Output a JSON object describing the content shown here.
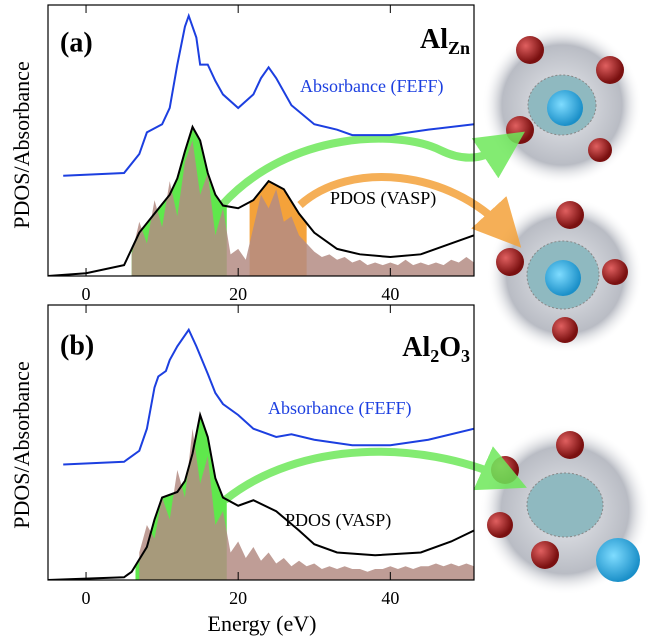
{
  "chart_data": [
    {
      "type": "line",
      "panel_label": "(a)",
      "formula": [
        {
          "text": "Al",
          "sub": false
        },
        {
          "text": "Zn",
          "sub": true
        }
      ],
      "y_label": "PDOS/Absorbance",
      "xlim": [
        -5,
        51
      ],
      "xticks": [
        0,
        20,
        40
      ],
      "ylim": [
        0,
        1
      ],
      "series": [
        {
          "name": "Absorbance (FEFF)",
          "color": "#1c3fe0",
          "x": [
            -3,
            5,
            7,
            8,
            10,
            11,
            12,
            13,
            13.5,
            14.5,
            15,
            16,
            17,
            18,
            20,
            22,
            23,
            24,
            25,
            27,
            30,
            33,
            35,
            40,
            45,
            51
          ],
          "values": [
            0.37,
            0.38,
            0.45,
            0.53,
            0.56,
            0.62,
            0.78,
            0.92,
            0.96,
            0.88,
            0.78,
            0.78,
            0.72,
            0.67,
            0.62,
            0.67,
            0.73,
            0.77,
            0.73,
            0.63,
            0.56,
            0.54,
            0.52,
            0.52,
            0.54,
            0.56
          ]
        },
        {
          "name": "PDOS (VASP)",
          "color": "#000000",
          "x": [
            -5,
            0,
            5,
            6,
            7,
            9,
            11,
            12,
            13,
            14,
            15,
            16,
            17,
            18,
            20,
            22,
            24,
            26,
            28,
            30,
            33,
            36,
            40,
            44,
            48,
            51
          ],
          "values": [
            0.0,
            0.01,
            0.04,
            0.1,
            0.16,
            0.23,
            0.3,
            0.36,
            0.46,
            0.55,
            0.5,
            0.38,
            0.3,
            0.26,
            0.25,
            0.28,
            0.35,
            0.32,
            0.23,
            0.16,
            0.1,
            0.08,
            0.07,
            0.08,
            0.12,
            0.15
          ]
        }
      ],
      "spikes": {
        "color": "#b48c84",
        "x": [
          6,
          7,
          8,
          9,
          10,
          11,
          12,
          13,
          14,
          15,
          16,
          17,
          18,
          19,
          20,
          21,
          22,
          23,
          24,
          25,
          26,
          27,
          28,
          29,
          30,
          31,
          32,
          33,
          34,
          35,
          36,
          37,
          38,
          39,
          40,
          41,
          42,
          43,
          44,
          45,
          46,
          47,
          48,
          49,
          50,
          51
        ],
        "values": [
          0.08,
          0.2,
          0.12,
          0.28,
          0.18,
          0.35,
          0.22,
          0.42,
          0.5,
          0.3,
          0.38,
          0.15,
          0.25,
          0.08,
          0.1,
          0.06,
          0.18,
          0.3,
          0.25,
          0.32,
          0.2,
          0.22,
          0.15,
          0.12,
          0.09,
          0.07,
          0.08,
          0.06,
          0.07,
          0.05,
          0.06,
          0.04,
          0.05,
          0.04,
          0.05,
          0.04,
          0.06,
          0.04,
          0.05,
          0.04,
          0.05,
          0.04,
          0.06,
          0.05,
          0.07,
          0.05
        ]
      },
      "highlights": [
        {
          "from": 6,
          "to": 18.5,
          "color": "#5fe84c"
        },
        {
          "from": 21.5,
          "to": 29,
          "color": "#f4a23a"
        }
      ]
    },
    {
      "type": "line",
      "panel_label": "(b)",
      "formula": [
        {
          "text": "Al",
          "sub": false
        },
        {
          "text": "2",
          "sub": true
        },
        {
          "text": "O",
          "sub": false
        },
        {
          "text": "3",
          "sub": true
        }
      ],
      "y_label": "PDOS/Absorbance",
      "x_label": "Energy (eV)",
      "xlim": [
        -5,
        51
      ],
      "xticks": [
        0,
        20,
        40
      ],
      "ylim": [
        0,
        1
      ],
      "series": [
        {
          "name": "Absorbance (FEFF)",
          "color": "#1c3fe0",
          "x": [
            -3,
            5,
            7,
            8,
            9,
            9.5,
            10.5,
            11,
            12,
            13.5,
            14.5,
            16,
            17,
            18,
            20,
            22,
            25,
            27,
            30,
            35,
            40,
            45,
            51
          ],
          "values": [
            0.42,
            0.43,
            0.47,
            0.55,
            0.7,
            0.74,
            0.76,
            0.8,
            0.85,
            0.91,
            0.85,
            0.75,
            0.68,
            0.64,
            0.6,
            0.55,
            0.52,
            0.53,
            0.51,
            0.49,
            0.49,
            0.51,
            0.55
          ]
        },
        {
          "name": "PDOS (VASP)",
          "color": "#000000",
          "x": [
            -5,
            5,
            6,
            8,
            9,
            10,
            12,
            13,
            14,
            15,
            16,
            17,
            18,
            20,
            22,
            25,
            28,
            30,
            33,
            38,
            44,
            48,
            51
          ],
          "values": [
            0.0,
            0.01,
            0.03,
            0.12,
            0.22,
            0.3,
            0.32,
            0.36,
            0.46,
            0.6,
            0.52,
            0.37,
            0.3,
            0.27,
            0.29,
            0.25,
            0.18,
            0.13,
            0.1,
            0.09,
            0.1,
            0.14,
            0.18
          ]
        }
      ],
      "spikes": {
        "color": "#b48c84",
        "x": [
          7,
          8,
          9,
          10,
          11,
          12,
          13,
          14,
          15,
          16,
          17,
          18,
          19,
          20,
          21,
          22,
          23,
          24,
          25,
          26,
          27,
          28,
          29,
          30,
          31,
          32,
          33,
          34,
          35,
          36,
          37,
          38,
          39,
          40,
          41,
          42,
          43,
          44,
          45,
          46,
          47,
          48,
          49,
          50,
          51
        ],
        "values": [
          0.1,
          0.2,
          0.15,
          0.3,
          0.22,
          0.4,
          0.3,
          0.55,
          0.35,
          0.45,
          0.2,
          0.25,
          0.1,
          0.14,
          0.08,
          0.12,
          0.07,
          0.1,
          0.06,
          0.08,
          0.05,
          0.07,
          0.05,
          0.06,
          0.04,
          0.05,
          0.04,
          0.05,
          0.04,
          0.04,
          0.03,
          0.04,
          0.04,
          0.05,
          0.04,
          0.05,
          0.04,
          0.05,
          0.05,
          0.06,
          0.05,
          0.06,
          0.05,
          0.06,
          0.05
        ]
      },
      "highlights": [
        {
          "from": 6.5,
          "to": 18.5,
          "color": "#5fe84c"
        }
      ]
    }
  ]
}
